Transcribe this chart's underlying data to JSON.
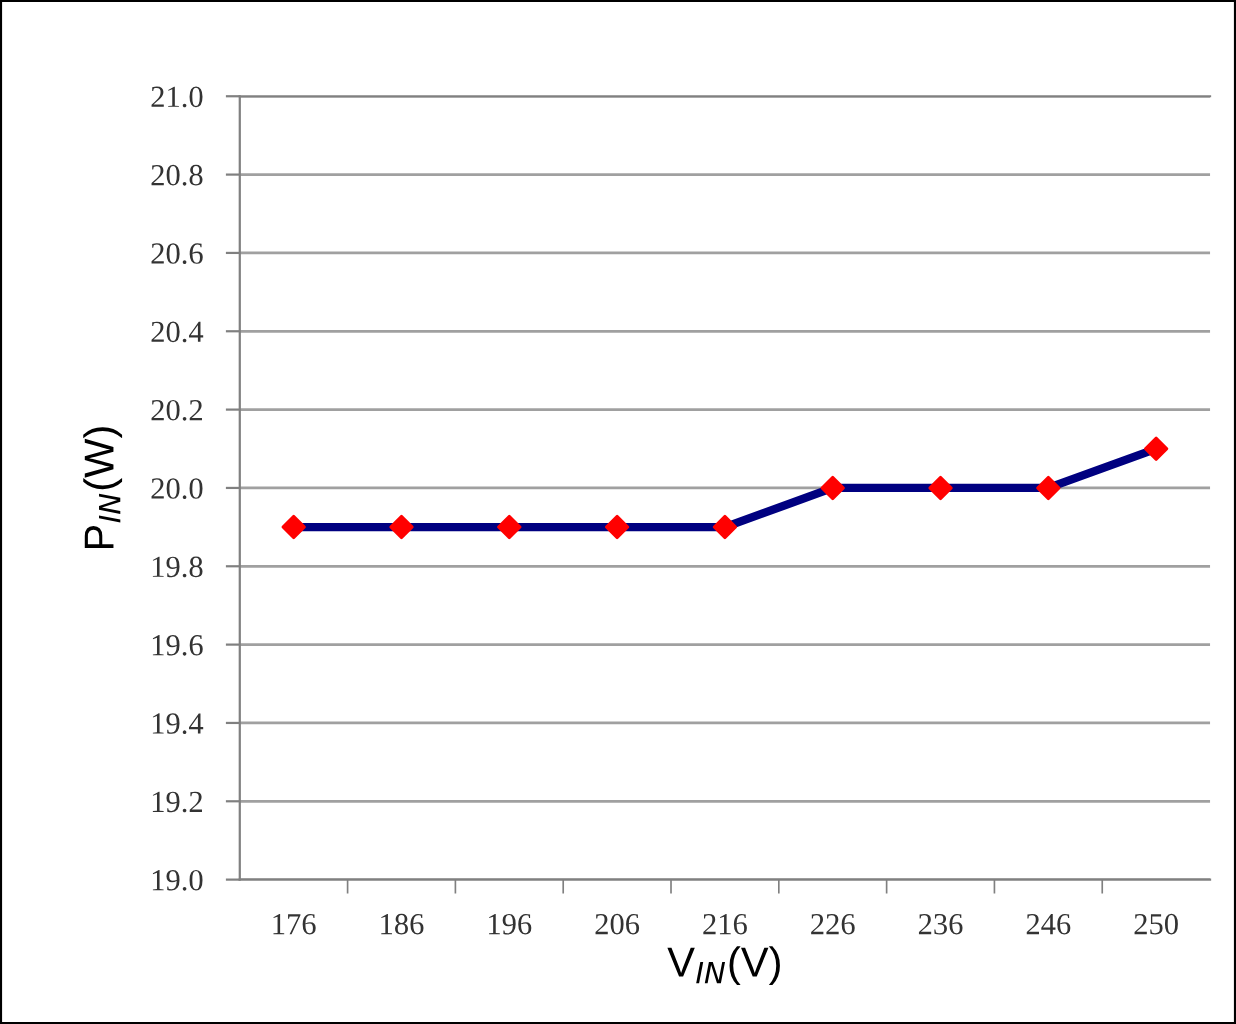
{
  "chart_data": {
    "type": "line",
    "xlabel": "V$_{IN}$(V)",
    "ylabel": "P$_{IN}$(W)",
    "categories": [
      "176",
      "186",
      "196",
      "206",
      "216",
      "226",
      "236",
      "246",
      "250"
    ],
    "series": [
      {
        "color": "#000080",
        "colors": [
          "#ff0000",
          "#ff0000",
          "#ff0000",
          "#ff0000",
          "#ff0000",
          "#ff0000",
          "#ff0000",
          "#ff0000",
          "#ff0000"
        ],
        "values": [
          19.9,
          19.9,
          19.9,
          19.9,
          19.9,
          20.0,
          20.0,
          20.0,
          20.1
        ]
      }
    ],
    "ylim": [
      19.0,
      21.0
    ],
    "yticks": [
      {
        "value": 19.0,
        "label": "19.0"
      },
      19.2,
      19.4,
      19.6,
      19.8,
      {
        "value": 20.0,
        "label": "20.0"
      },
      20.2,
      20.4,
      20.6,
      20.8,
      {
        "value": 21.0,
        "label": "21.0"
      }
    ],
    "grid": "y",
    "marker": "diamond",
    "line_style": "solid"
  }
}
